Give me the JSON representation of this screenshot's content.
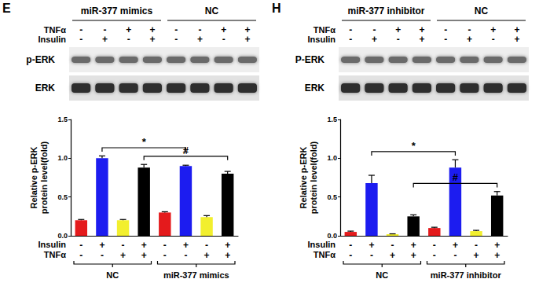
{
  "chart_data": [
    {
      "type": "bar",
      "y_label": "Relative p-ERK\nprotein level(fold)",
      "categories": [
        null,
        null,
        null,
        null,
        null,
        null,
        null,
        null
      ],
      "values": [
        0.2,
        1.0,
        0.2,
        0.88,
        0.3,
        0.9,
        0.24,
        0.8
      ],
      "errors": [
        0.01,
        0.03,
        0.01,
        0.04,
        0.01,
        0.01,
        0.02,
        0.03
      ],
      "colors": [
        "#e41a1c",
        "#1c1cf0",
        "#f2ef2e",
        "#000000",
        "#e41a1c",
        "#1c1cf0",
        "#f2ef2e",
        "#000000"
      ],
      "x_rows": [
        {
          "label": "Insulin",
          "marks": [
            "-",
            "+",
            "-",
            "+",
            "-",
            "+",
            "-",
            "+"
          ]
        },
        {
          "label": "TNFα",
          "marks": [
            "-",
            "-",
            "+",
            "+",
            "-",
            "-",
            "+",
            "+"
          ]
        }
      ],
      "groups": [
        "NC",
        "miR-377 mimics"
      ],
      "annotations": [
        {
          "text": "*",
          "from": 1,
          "to": 5
        },
        {
          "text": "#",
          "from": 3,
          "to": 7
        }
      ],
      "ylim": [
        0,
        1.5
      ],
      "yticks": [
        {
          "value": 0,
          "label": "0.0"
        },
        0.5,
        {
          "value": 1,
          "label": "1.0"
        },
        1.5
      ],
      "grid": false
    },
    {
      "type": "bar",
      "y_label": "Relative p-ERK\nprotein level(fold)",
      "categories": [
        null,
        null,
        null,
        null,
        null,
        null,
        null,
        null
      ],
      "values": [
        0.05,
        0.68,
        0.02,
        0.25,
        0.1,
        0.88,
        0.06,
        0.52
      ],
      "errors": [
        0.01,
        0.1,
        0.005,
        0.02,
        0.01,
        0.1,
        0.01,
        0.05
      ],
      "colors": [
        "#e41a1c",
        "#1c1cf0",
        "#f2ef2e",
        "#000000",
        "#e41a1c",
        "#1c1cf0",
        "#f2ef2e",
        "#000000"
      ],
      "x_rows": [
        {
          "label": "Insulin",
          "marks": [
            "-",
            "+",
            "-",
            "+",
            "-",
            "+",
            "-",
            "+"
          ]
        },
        {
          "label": "TNFα",
          "marks": [
            "-",
            "-",
            "+",
            "+",
            "-",
            "-",
            "+",
            "+"
          ]
        }
      ],
      "groups": [
        "NC",
        "miR-377 inhibitor"
      ],
      "annotations": [
        {
          "text": "*",
          "from": 1,
          "to": 5
        },
        {
          "text": "#",
          "from": 3,
          "to": 7
        }
      ],
      "ylim": [
        0,
        1.5
      ],
      "yticks": [
        {
          "value": 0,
          "label": "0.0"
        },
        0.5,
        {
          "value": 1,
          "label": "1.0"
        },
        1.5
      ],
      "grid": false
    }
  ],
  "blots": [
    {
      "letter": "E",
      "groups": [
        "miR-377 mimics",
        "NC"
      ],
      "rows": [
        {
          "label": "TNFα",
          "marks": [
            "-",
            "-",
            "+",
            "+",
            "-",
            "-",
            "+",
            "+"
          ]
        },
        {
          "label": "Insulin",
          "marks": [
            "-",
            "+",
            "-",
            "+",
            "-",
            "+",
            "-",
            "+"
          ]
        }
      ],
      "bands": [
        "p-ERK",
        "ERK"
      ]
    },
    {
      "letter": "H",
      "groups": [
        "miR-377 inhibitor",
        "NC"
      ],
      "rows": [
        {
          "label": "TNFα",
          "marks": [
            "-",
            "-",
            "+",
            "+",
            "-",
            "-",
            "+",
            "+"
          ]
        },
        {
          "label": "Insulin",
          "marks": [
            "-",
            "+",
            "-",
            "+",
            "-",
            "+",
            "-",
            "+"
          ]
        }
      ],
      "bands": [
        "P-ERK",
        "ERK"
      ]
    }
  ]
}
